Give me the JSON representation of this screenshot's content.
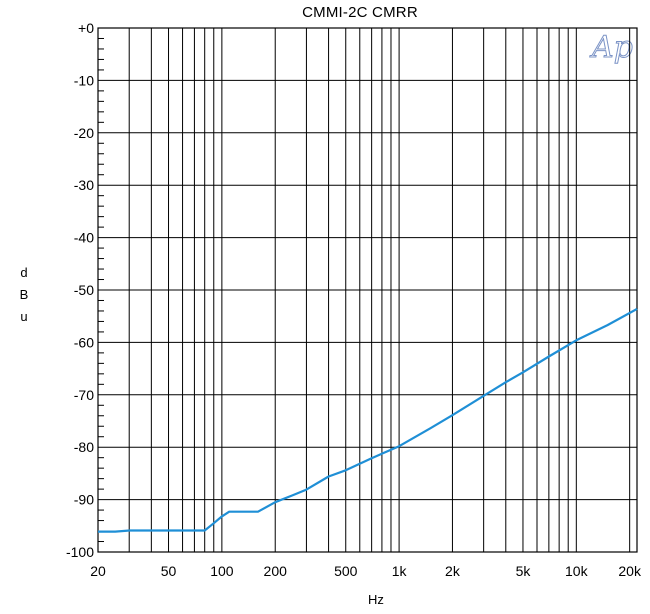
{
  "chart_data": {
    "type": "line",
    "title": "CMMI-2C  CMRR",
    "xlabel": "Hz",
    "ylabel": "dBu",
    "x_scale": "log",
    "xlim": [
      20,
      22000
    ],
    "ylim": [
      -100,
      0
    ],
    "x_ticks": [
      {
        "value": 20,
        "label": "20"
      },
      {
        "value": 50,
        "label": "50"
      },
      {
        "value": 100,
        "label": "100"
      },
      {
        "value": 200,
        "label": "200"
      },
      {
        "value": 500,
        "label": "500"
      },
      {
        "value": 1000,
        "label": "1k"
      },
      {
        "value": 2000,
        "label": "2k"
      },
      {
        "value": 5000,
        "label": "5k"
      },
      {
        "value": 10000,
        "label": "10k"
      },
      {
        "value": 20000,
        "label": "20k"
      }
    ],
    "y_ticks": [
      {
        "value": 0,
        "label": "+0"
      },
      {
        "value": -10,
        "label": "-10"
      },
      {
        "value": -20,
        "label": "-20"
      },
      {
        "value": -30,
        "label": "-30"
      },
      {
        "value": -40,
        "label": "-40"
      },
      {
        "value": -50,
        "label": "-50"
      },
      {
        "value": -60,
        "label": "-60"
      },
      {
        "value": -70,
        "label": "-70"
      },
      {
        "value": -80,
        "label": "-80"
      },
      {
        "value": -90,
        "label": "-90"
      },
      {
        "value": -100,
        "label": "-100"
      }
    ],
    "grid": true,
    "series": [
      {
        "color": "#1f8fd6",
        "x": [
          20,
          25,
          30,
          40,
          50,
          60,
          70,
          80,
          90,
          100,
          110,
          130,
          160,
          200,
          250,
          300,
          400,
          500,
          700,
          1000,
          1500,
          2000,
          3000,
          4000,
          5000,
          7000,
          10000,
          15000,
          22000
        ],
        "y": [
          -96.1,
          -96.1,
          -95.9,
          -95.9,
          -95.9,
          -95.9,
          -95.9,
          -95.9,
          -94.5,
          -93.2,
          -92.3,
          -92.3,
          -92.3,
          -90.5,
          -89.2,
          -88.1,
          -85.6,
          -84.4,
          -82.1,
          -79.8,
          -76.4,
          -73.9,
          -70.2,
          -67.6,
          -65.7,
          -62.7,
          -59.6,
          -56.7,
          -53.6
        ]
      }
    ]
  },
  "logo_text": "Ap"
}
